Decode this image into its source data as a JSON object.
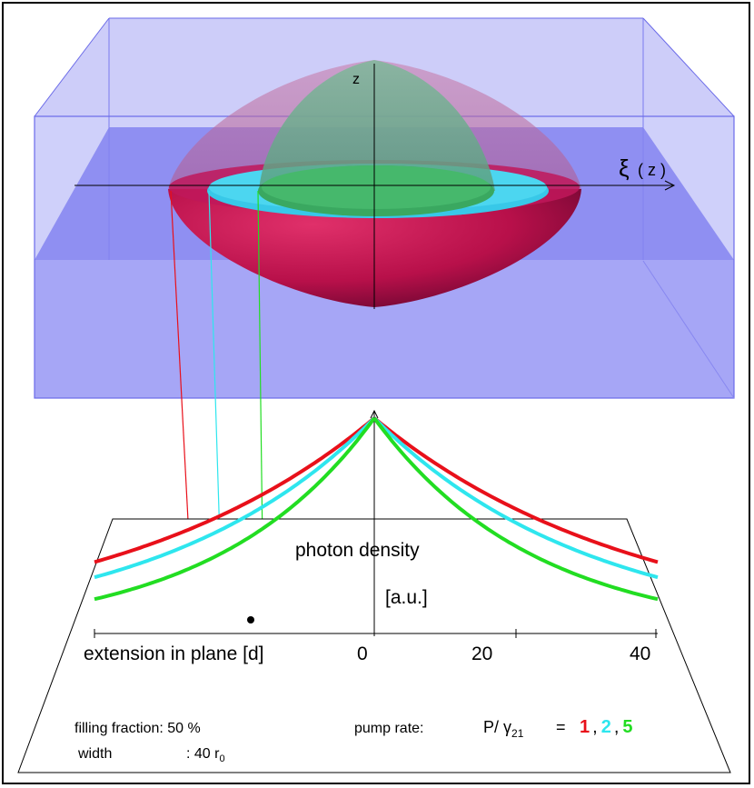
{
  "diagram": {
    "z_axis_label": "z",
    "xi_symbol": "ξ",
    "xi_arg": "( z )",
    "plot_label_line1": "photon density",
    "plot_label_line2": "[a.u.]",
    "x_axis_label": "extension in plane [d]",
    "ticks": [
      "0",
      "20",
      "40"
    ],
    "filling_label": "filling fraction: 50 %",
    "width_label": "width",
    "width_value": ": 40 r",
    "width_sub": "0",
    "pump_label": "pump rate:",
    "formula_P": "P/ γ",
    "formula_sub": "21",
    "formula_eq": "=",
    "pump_values": [
      "1",
      "2",
      "5"
    ],
    "comma": ",",
    "colors": {
      "red": "#e8101a",
      "cyan": "#2ee6ee",
      "green": "#22dd22",
      "box": "#7b7bf0"
    }
  },
  "chart_data": {
    "type": "line",
    "title": "",
    "xlabel": "extension in plane [d]",
    "ylabel": "photon density [a.u.]",
    "x_ticks": [
      0,
      20,
      40
    ],
    "xlim": [
      -40,
      40
    ],
    "series": [
      {
        "name": "1",
        "color": "#e8101a",
        "edge_value": 0.34
      },
      {
        "name": "2",
        "color": "#2ee6ee",
        "edge_value": 0.27
      },
      {
        "name": "5",
        "color": "#22dd22",
        "edge_value": 0.17
      }
    ]
  }
}
